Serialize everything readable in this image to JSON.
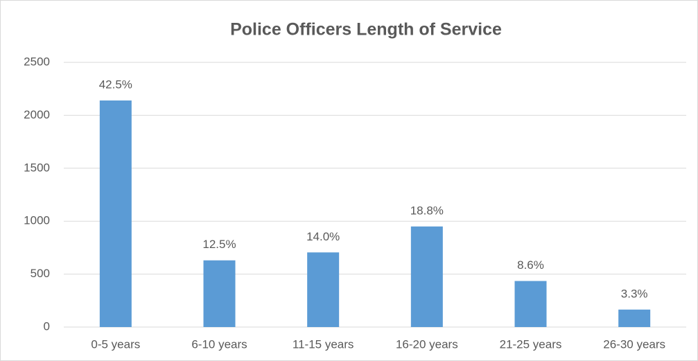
{
  "chart_data": {
    "type": "bar",
    "title": "Police Officers Length of Service",
    "categories": [
      "0-5 years",
      "6-10 years",
      "11-15 years",
      "16-20 years",
      "21-25 years",
      "26-30 years"
    ],
    "values": [
      2140,
      630,
      705,
      950,
      435,
      165
    ],
    "data_labels": [
      {
        "value": 42.5,
        "label": "42.5%"
      },
      {
        "value": 12.5,
        "label": "12.5%"
      },
      {
        "value": 14.0,
        "label": "14.0%"
      },
      {
        "value": 18.8,
        "label": "18.8%"
      },
      {
        "value": 8.6,
        "label": "8.6%"
      },
      {
        "value": 3.3,
        "label": "3.3%"
      }
    ],
    "color": "#5b9bd5",
    "ylim": [
      0,
      2500
    ],
    "yticks": [
      0,
      500,
      1000,
      1500,
      2000,
      2500
    ],
    "grid": true
  }
}
